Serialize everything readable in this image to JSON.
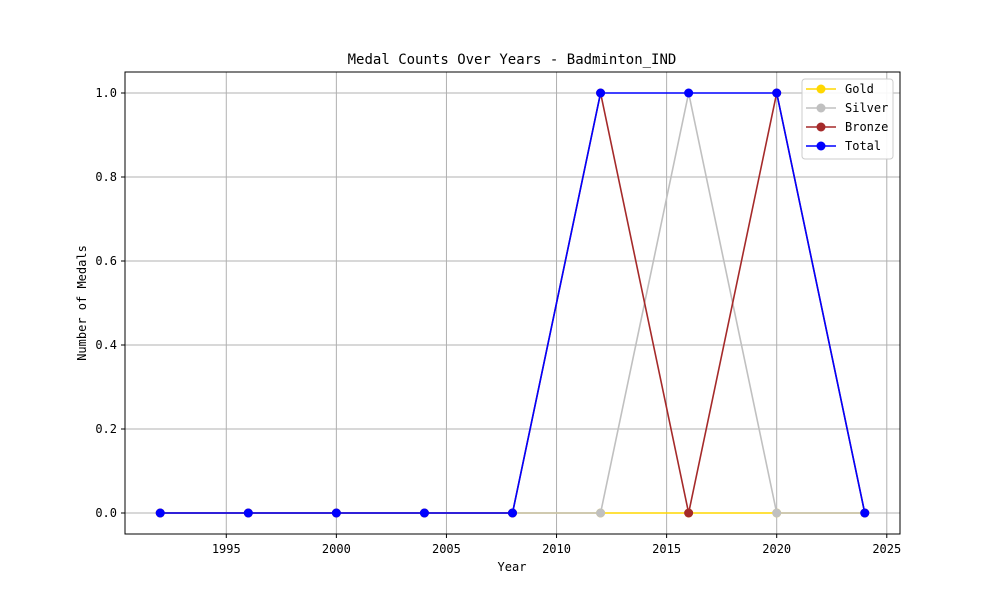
{
  "chart_data": {
    "type": "line",
    "title": "Medal Counts Over Years - Badminton_IND",
    "xlabel": "Year",
    "ylabel": "Number of Medals",
    "x": [
      1992,
      1996,
      2000,
      2004,
      2008,
      2012,
      2016,
      2020,
      2024
    ],
    "series": [
      {
        "name": "Gold",
        "color": "#ffd700",
        "values": [
          0,
          0,
          0,
          0,
          0,
          0,
          0,
          0,
          0
        ]
      },
      {
        "name": "Silver",
        "color": "#c0c0c0",
        "values": [
          0,
          0,
          0,
          0,
          0,
          0,
          1,
          0,
          0
        ]
      },
      {
        "name": "Bronze",
        "color": "#a52a2a",
        "values": [
          0,
          0,
          0,
          0,
          0,
          1,
          0,
          1,
          0
        ]
      },
      {
        "name": "Total",
        "color": "#0000ff",
        "values": [
          0,
          0,
          0,
          0,
          0,
          1,
          1,
          1,
          0
        ]
      }
    ],
    "xlim": [
      1990.4,
      2025.6
    ],
    "ylim": [
      -0.05,
      1.05
    ],
    "xticks": [
      1995,
      2000,
      2005,
      2010,
      2015,
      2020,
      2025
    ],
    "yticks": [
      0.0,
      0.2,
      0.4,
      0.6,
      0.8,
      1.0
    ],
    "ytick_labels": [
      "0.0",
      "0.2",
      "0.4",
      "0.6",
      "0.8",
      "1.0"
    ],
    "grid": true,
    "legend_position": "top-right",
    "marker": "circle"
  }
}
